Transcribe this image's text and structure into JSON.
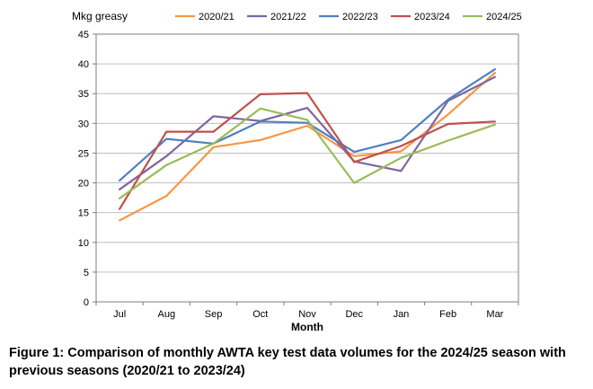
{
  "caption": "Figure 1: Comparison of monthly AWTA key test data volumes for the 2024/25 season with previous seasons (2020/21 to 2023/24)",
  "chart_data": {
    "type": "line",
    "title": "",
    "ylabel": "Mkg greasy",
    "xlabel": "Month",
    "categories": [
      "Jul",
      "Aug",
      "Sep",
      "Oct",
      "Nov",
      "Dec",
      "Jan",
      "Feb",
      "Mar"
    ],
    "ylim": [
      0,
      45
    ],
    "yticks": [
      0,
      5,
      10,
      15,
      20,
      25,
      30,
      35,
      40,
      45
    ],
    "grid": true,
    "legend_position": "top",
    "series": [
      {
        "name": "2020/21",
        "color": "#f79646",
        "values": [
          13.7,
          17.8,
          26.0,
          27.2,
          29.6,
          24.5,
          25.3,
          31.5,
          38.5
        ]
      },
      {
        "name": "2021/22",
        "color": "#8064a2",
        "values": [
          18.9,
          24.5,
          31.2,
          30.4,
          32.6,
          23.6,
          22.0,
          33.8,
          37.8
        ]
      },
      {
        "name": "2022/23",
        "color": "#4f81bd",
        "values": [
          20.4,
          27.4,
          26.6,
          30.3,
          30.1,
          25.2,
          27.2,
          34.0,
          39.1
        ]
      },
      {
        "name": "2023/24",
        "color": "#c0504d",
        "values": [
          15.6,
          28.6,
          28.6,
          34.9,
          35.1,
          23.5,
          26.2,
          29.9,
          30.3
        ]
      },
      {
        "name": "2024/25",
        "color": "#9bbb59",
        "values": [
          17.4,
          23.0,
          26.6,
          32.5,
          30.6,
          20.0,
          24.2,
          27.1,
          29.8
        ]
      }
    ]
  }
}
